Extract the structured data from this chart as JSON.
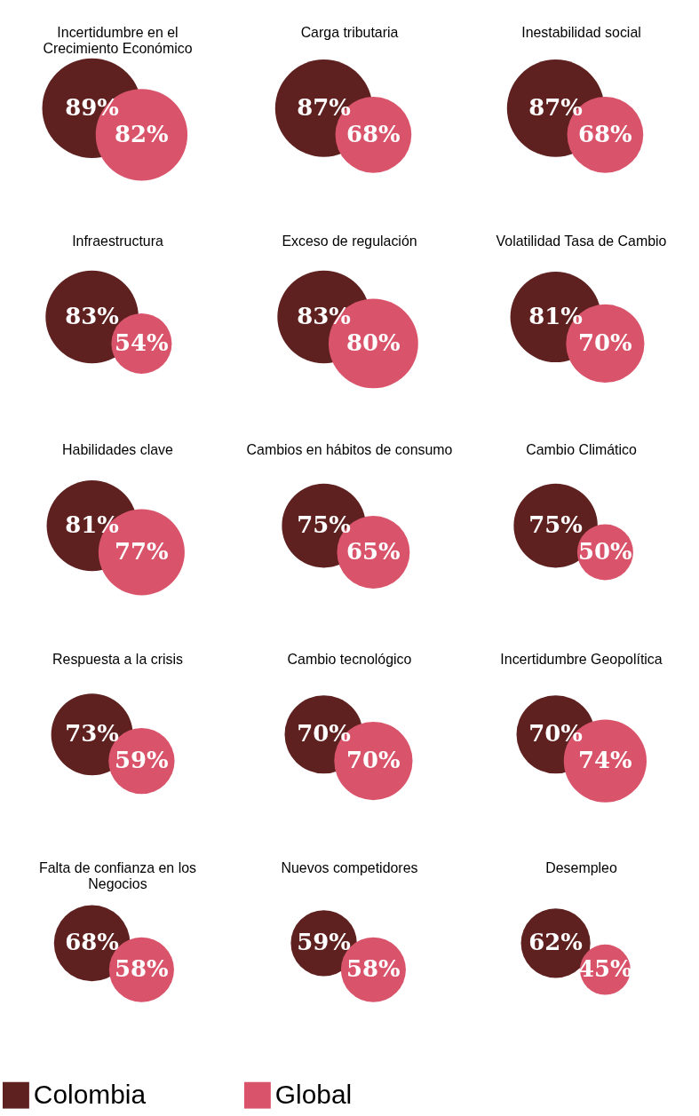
{
  "chart_data": {
    "type": "other",
    "legend": "bottom",
    "categories": [
      "Incertidumbre en el Crecimiento Económico",
      "Carga tributaria",
      "Inestabilidad social",
      "Infraestructura",
      "Exceso de regulación",
      "Volatilidad Tasa de Cambio",
      "Habilidades clave",
      "Cambios en hábitos de consumo",
      "Cambio Climático",
      "Respuesta a la crisis",
      "Cambio tecnológico",
      "Incertidumbre Geopolítica",
      "Falta de confianza en los Negocios",
      "Nuevos competidores",
      "Desempleo"
    ],
    "series": [
      {
        "name": "Colombia",
        "color": "#5f2120",
        "values": [
          89,
          87,
          87,
          83,
          83,
          81,
          81,
          75,
          75,
          73,
          70,
          70,
          68,
          59,
          62
        ],
        "value_labels": [
          "89%",
          "87%",
          "87%",
          "83%",
          "83%",
          "81%",
          "81%",
          "75%",
          "75%",
          "73%",
          "70%",
          "70%",
          "68%",
          "59%",
          "62%"
        ]
      },
      {
        "name": "Global",
        "color": "#d9546b",
        "values": [
          82,
          68,
          68,
          54,
          80,
          70,
          77,
          65,
          50,
          59,
          70,
          74,
          58,
          58,
          45
        ],
        "value_labels": [
          "82%",
          "68%",
          "68%",
          "54%",
          "80%",
          "70%",
          "77%",
          "65%",
          "50%",
          "59%",
          "70%",
          "74%",
          "58%",
          "58%",
          "45%"
        ]
      }
    ]
  }
}
